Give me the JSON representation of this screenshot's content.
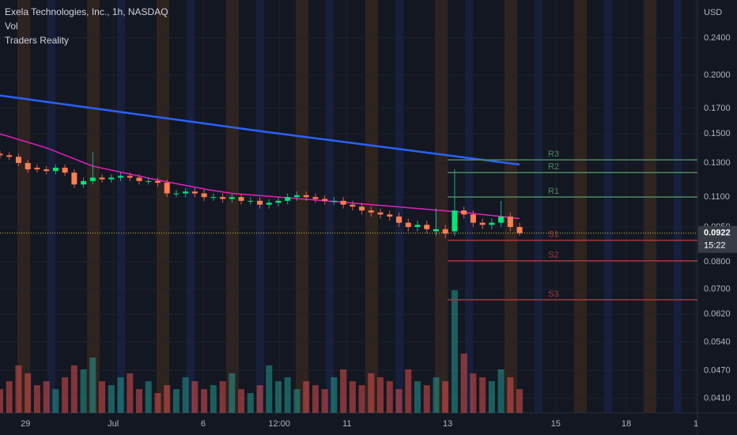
{
  "chart_data": {
    "type": "candlestick",
    "title": "Exela Technologies, Inc., 1h, NASDAQ",
    "indicators": [
      "Vol",
      "Traders Reality"
    ],
    "currency": "USD",
    "log_scale": true,
    "grid": true,
    "up_color": "#26a69a",
    "down_color": "#ef5350",
    "up_body_color": "#00e676",
    "down_body_color": "#ff7f50",
    "x": [
      0,
      2,
      4,
      6,
      8,
      10,
      12,
      14,
      16,
      18,
      20,
      22,
      24,
      26,
      28,
      30,
      32,
      34,
      36,
      38,
      40,
      42,
      44,
      46,
      48,
      50,
      52,
      54,
      56,
      58,
      60,
      62,
      64,
      66,
      68,
      70,
      72,
      74,
      76,
      78,
      80,
      82,
      84,
      86,
      88,
      90,
      92,
      94,
      96,
      98,
      100,
      102,
      104,
      106,
      108,
      110,
      112
    ],
    "open": [
      0.136,
      0.135,
      0.134,
      0.13,
      0.127,
      0.126,
      0.125,
      0.127,
      0.124,
      0.117,
      0.119,
      0.121,
      0.12,
      0.121,
      0.122,
      0.121,
      0.119,
      0.119,
      0.118,
      0.112,
      0.112,
      0.113,
      0.112,
      0.11,
      0.11,
      0.109,
      0.11,
      0.108,
      0.108,
      0.106,
      0.107,
      0.108,
      0.11,
      0.111,
      0.11,
      0.109,
      0.108,
      0.108,
      0.106,
      0.105,
      0.103,
      0.102,
      0.101,
      0.1,
      0.097,
      0.095,
      0.096,
      0.093,
      0.094,
      0.093,
      0.103,
      0.101,
      0.097,
      0.096,
      0.097,
      0.1,
      0.095
    ],
    "high": [
      0.138,
      0.137,
      0.136,
      0.132,
      0.129,
      0.128,
      0.129,
      0.129,
      0.126,
      0.121,
      0.137,
      0.123,
      0.123,
      0.124,
      0.124,
      0.123,
      0.121,
      0.121,
      0.12,
      0.114,
      0.115,
      0.115,
      0.114,
      0.112,
      0.112,
      0.112,
      0.112,
      0.11,
      0.11,
      0.109,
      0.11,
      0.112,
      0.113,
      0.113,
      0.112,
      0.111,
      0.11,
      0.11,
      0.108,
      0.107,
      0.105,
      0.104,
      0.103,
      0.102,
      0.099,
      0.098,
      0.098,
      0.104,
      0.096,
      0.126,
      0.105,
      0.103,
      0.099,
      0.099,
      0.108,
      0.102,
      0.097
    ],
    "low": [
      0.133,
      0.132,
      0.128,
      0.124,
      0.124,
      0.123,
      0.123,
      0.122,
      0.115,
      0.115,
      0.117,
      0.118,
      0.118,
      0.119,
      0.119,
      0.117,
      0.117,
      0.116,
      0.11,
      0.11,
      0.11,
      0.11,
      0.108,
      0.108,
      0.107,
      0.107,
      0.106,
      0.106,
      0.104,
      0.104,
      0.105,
      0.106,
      0.108,
      0.108,
      0.107,
      0.106,
      0.106,
      0.104,
      0.103,
      0.101,
      0.1,
      0.099,
      0.098,
      0.095,
      0.093,
      0.093,
      0.092,
      0.091,
      0.09,
      0.091,
      0.099,
      0.095,
      0.094,
      0.094,
      0.095,
      0.093,
      0.091
    ],
    "close": [
      0.135,
      0.134,
      0.13,
      0.126,
      0.126,
      0.125,
      0.127,
      0.124,
      0.117,
      0.119,
      0.121,
      0.12,
      0.121,
      0.122,
      0.121,
      0.119,
      0.119,
      0.118,
      0.112,
      0.112,
      0.113,
      0.112,
      0.11,
      0.11,
      0.109,
      0.11,
      0.108,
      0.108,
      0.106,
      0.107,
      0.108,
      0.11,
      0.111,
      0.11,
      0.109,
      0.108,
      0.108,
      0.106,
      0.105,
      0.103,
      0.102,
      0.101,
      0.1,
      0.097,
      0.095,
      0.096,
      0.094,
      0.094,
      0.092,
      0.103,
      0.101,
      0.097,
      0.096,
      0.097,
      0.1,
      0.095,
      0.0922
    ],
    "volume": [
      30000,
      40000,
      60000,
      50000,
      35000,
      40000,
      30000,
      45000,
      60000,
      55000,
      70000,
      40000,
      35000,
      45000,
      50000,
      30000,
      40000,
      25000,
      35000,
      30000,
      45000,
      40000,
      30000,
      35000,
      40000,
      50000,
      30000,
      25000,
      35000,
      60000,
      40000,
      45000,
      30000,
      40000,
      35000,
      30000,
      45000,
      55000,
      40000,
      35000,
      50000,
      45000,
      40000,
      30000,
      55000,
      40000,
      35000,
      45000,
      40000,
      155000,
      75000,
      50000,
      45000,
      40000,
      55000,
      45000,
      30000
    ],
    "moving_averages": [
      {
        "color": "#2962ff",
        "x": [
          0,
          56,
          112
        ],
        "values": [
          0.181,
          0.152,
          0.129
        ]
      },
      {
        "color": "#e91ebf",
        "x": [
          0,
          10,
          20,
          35,
          45,
          50,
          60,
          70,
          80,
          90,
          100,
          112
        ],
        "values": [
          0.15,
          0.14,
          0.128,
          0.119,
          0.114,
          0.112,
          0.11,
          0.108,
          0.106,
          0.104,
          0.102,
          0.099
        ]
      }
    ],
    "pivot_start_x": 96.5,
    "pivot_levels": [
      {
        "name": "R3",
        "value": 0.132,
        "color": "#4c8a5e"
      },
      {
        "name": "R2",
        "value": 0.124,
        "color": "#4c8a5e"
      },
      {
        "name": "R1",
        "value": 0.11,
        "color": "#4c8a5e"
      },
      {
        "name": "S1",
        "value": 0.089,
        "color": "#a33a3a"
      },
      {
        "name": "S2",
        "value": 0.0805,
        "color": "#a33a3a"
      },
      {
        "name": "S3",
        "value": 0.0665,
        "color": "#a33a3a"
      }
    ],
    "last_price": {
      "value": 0.0922,
      "label": "0.0922"
    },
    "countdown": "15:22",
    "xlim": [
      0,
      150
    ],
    "ylim": [
      0.0382,
      0.289
    ],
    "xticks": [
      {
        "value": 5.5,
        "label": "29"
      },
      {
        "value": 24.4,
        "label": "Jul"
      },
      {
        "value": 43.8,
        "label": "6"
      },
      {
        "value": 60.2,
        "label": "12:00"
      },
      {
        "value": 74.8,
        "label": "11"
      },
      {
        "value": 96.5,
        "label": "13"
      },
      {
        "value": 119.8,
        "label": "15"
      },
      {
        "value": 135,
        "label": "18"
      },
      {
        "value": 150,
        "label": "1"
      }
    ],
    "yticks": [
      {
        "value": 0.041,
        "label": "0.0410"
      },
      {
        "value": 0.047,
        "label": "0.0470"
      },
      {
        "value": 0.054,
        "label": "0.0540"
      },
      {
        "value": 0.062,
        "label": "0.0620"
      },
      {
        "value": 0.07,
        "label": "0.0700"
      },
      {
        "value": 0.08,
        "label": "0.0800"
      },
      {
        "value": 0.095,
        "label": "0.0950"
      },
      {
        "value": 0.11,
        "label": "0.1100"
      },
      {
        "value": 0.13,
        "label": "0.1300"
      },
      {
        "value": 0.15,
        "label": "0.1500"
      },
      {
        "value": 0.17,
        "label": "0.1700"
      },
      {
        "value": 0.2,
        "label": "0.2000"
      },
      {
        "value": 0.24,
        "label": "0.2400"
      }
    ]
  }
}
